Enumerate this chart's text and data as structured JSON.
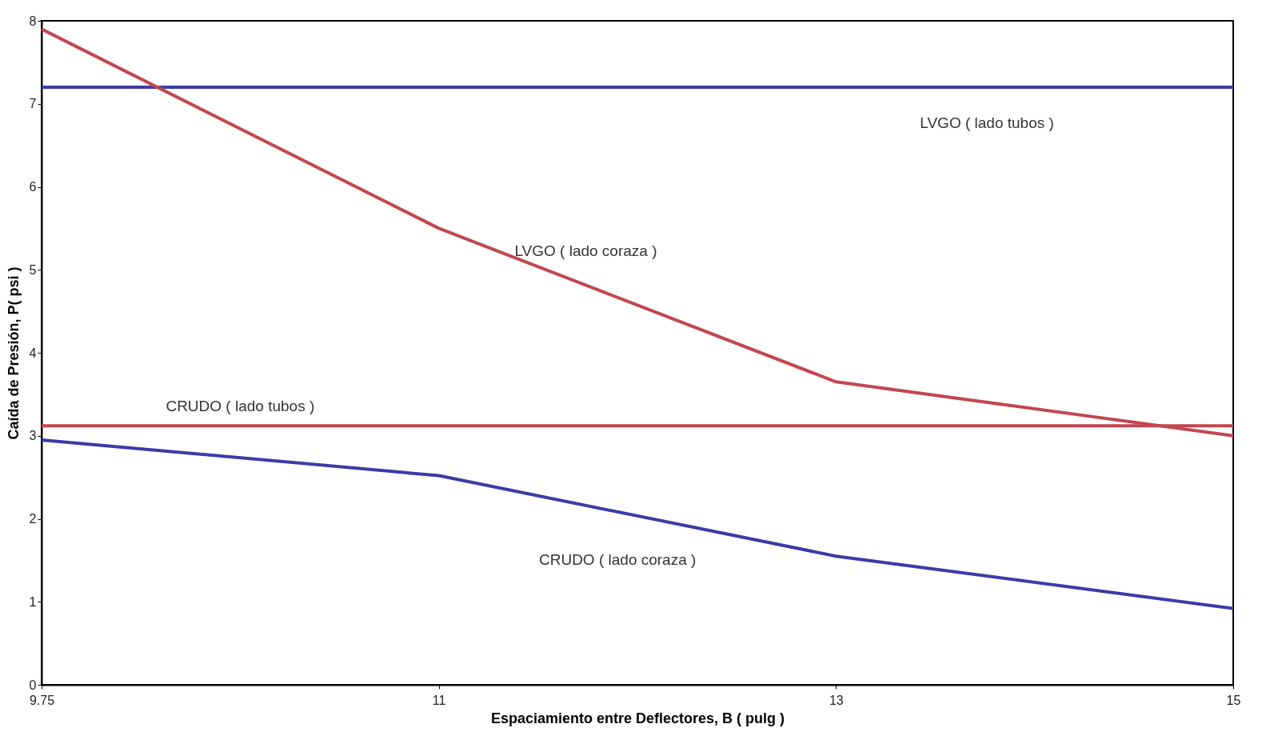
{
  "chart_data": {
    "type": "line",
    "xlabel": "Espaciamiento entre Deflectores, B ( pulg )",
    "ylabel": "Caída de Presión, P( psi )",
    "categories": [
      "9.75",
      "11",
      "13",
      "15"
    ],
    "series": [
      {
        "name": "LVGO ( lado tubos )",
        "color": "#3b3ba8",
        "values": [
          7.2,
          7.2,
          7.2,
          7.2
        ]
      },
      {
        "name": "LVGO ( lado coraza )",
        "color": "#c2474f",
        "values": [
          7.9,
          5.5,
          3.65,
          3.0
        ]
      },
      {
        "name": "CRUDO ( lado tubos )",
        "color": "#c2474f",
        "values": [
          3.12,
          3.12,
          3.12,
          3.12
        ]
      },
      {
        "name": "CRUDO ( lado coraza )",
        "color": "#3b3ba8",
        "values": [
          2.95,
          2.52,
          1.55,
          0.92
        ]
      }
    ],
    "ylim": [
      0,
      8
    ],
    "yticks": [
      0,
      1,
      2,
      3,
      4,
      5,
      6,
      7,
      8
    ],
    "grid": false,
    "legend": false,
    "marker": "none",
    "line_style": "solid"
  }
}
